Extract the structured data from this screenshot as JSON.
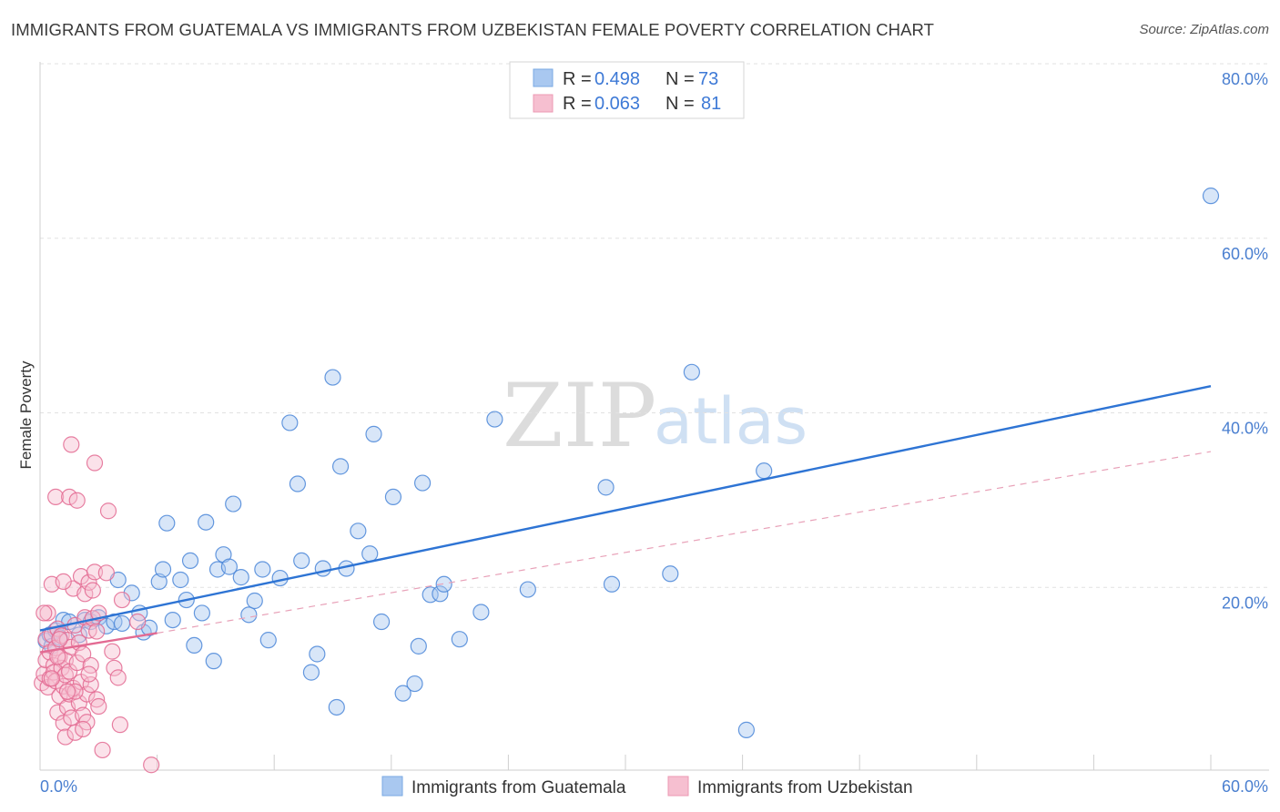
{
  "title": "IMMIGRANTS FROM GUATEMALA VS IMMIGRANTS FROM UZBEKISTAN FEMALE POVERTY CORRELATION CHART",
  "source": "Source: ZipAtlas.com",
  "watermark": {
    "zip": "ZIP",
    "atlas": "atlas"
  },
  "chart_data": {
    "type": "scatter",
    "title": "IMMIGRANTS FROM GUATEMALA VS IMMIGRANTS FROM UZBEKISTAN FEMALE POVERTY CORRELATION CHART",
    "xlabel": "",
    "ylabel": "Female Poverty",
    "xlim": [
      0,
      60
    ],
    "ylim": [
      0,
      85
    ],
    "x_tick_labels": {
      "left": "0.0%",
      "right": "60.0%"
    },
    "y_ticks": [
      {
        "value": 20,
        "label": "20.0%"
      },
      {
        "value": 40,
        "label": "40.0%"
      },
      {
        "value": 60,
        "label": "60.0%"
      },
      {
        "value": 80,
        "label": "80.0%"
      }
    ],
    "grid": true,
    "legend": {
      "r_label": "R =",
      "n_label": "N =",
      "entries": [
        {
          "r": "0.498",
          "n": "73"
        },
        {
          "r": "0.063",
          "n": "81"
        }
      ]
    },
    "series": [
      {
        "name": "Immigrants from Guatemala",
        "color": "#4a86d8",
        "fill": "#a9c8f0",
        "trend": {
          "x0": 0,
          "y0": 16.0,
          "x1": 60,
          "y1": 44.0,
          "style": "solid",
          "color": "#2e74d4"
        },
        "points": [
          [
            0.3,
            14.8
          ],
          [
            0.5,
            15.5
          ],
          [
            0.6,
            14.2
          ],
          [
            0.8,
            16.0
          ],
          [
            1.0,
            15.2
          ],
          [
            1.2,
            17.2
          ],
          [
            1.5,
            17.0
          ],
          [
            2.0,
            15.5
          ],
          [
            2.3,
            17.2
          ],
          [
            2.6,
            17.0
          ],
          [
            3.0,
            17.5
          ],
          [
            3.4,
            16.5
          ],
          [
            3.8,
            17.0
          ],
          [
            4.2,
            16.8
          ],
          [
            4.0,
            21.8
          ],
          [
            4.7,
            20.3
          ],
          [
            5.1,
            18.0
          ],
          [
            5.3,
            15.8
          ],
          [
            5.6,
            16.3
          ],
          [
            6.1,
            21.6
          ],
          [
            6.3,
            23.0
          ],
          [
            6.5,
            28.3
          ],
          [
            6.8,
            17.2
          ],
          [
            7.2,
            21.8
          ],
          [
            7.5,
            19.5
          ],
          [
            7.7,
            24.0
          ],
          [
            7.9,
            14.3
          ],
          [
            8.3,
            18.0
          ],
          [
            8.5,
            28.4
          ],
          [
            8.9,
            12.5
          ],
          [
            9.1,
            23.0
          ],
          [
            9.4,
            24.7
          ],
          [
            9.7,
            23.3
          ],
          [
            9.9,
            30.5
          ],
          [
            10.3,
            22.1
          ],
          [
            10.7,
            17.8
          ],
          [
            11.0,
            19.4
          ],
          [
            11.4,
            23.0
          ],
          [
            11.7,
            14.9
          ],
          [
            12.3,
            22.0
          ],
          [
            12.8,
            39.8
          ],
          [
            13.2,
            32.8
          ],
          [
            13.4,
            24.0
          ],
          [
            13.9,
            11.2
          ],
          [
            14.2,
            13.3
          ],
          [
            14.5,
            23.1
          ],
          [
            15.0,
            45.0
          ],
          [
            15.2,
            7.2
          ],
          [
            15.4,
            34.8
          ],
          [
            15.7,
            23.1
          ],
          [
            16.3,
            27.4
          ],
          [
            16.9,
            24.8
          ],
          [
            17.1,
            38.5
          ],
          [
            17.5,
            17.0
          ],
          [
            18.1,
            31.3
          ],
          [
            18.6,
            8.8
          ],
          [
            19.2,
            9.9
          ],
          [
            19.4,
            14.2
          ],
          [
            19.6,
            32.9
          ],
          [
            20.0,
            20.1
          ],
          [
            20.5,
            20.2
          ],
          [
            20.7,
            21.3
          ],
          [
            21.5,
            15.0
          ],
          [
            22.6,
            18.1
          ],
          [
            23.3,
            40.2
          ],
          [
            25.0,
            20.7
          ],
          [
            29.0,
            32.4
          ],
          [
            29.3,
            21.3
          ],
          [
            32.3,
            22.5
          ],
          [
            33.4,
            45.6
          ],
          [
            36.2,
            4.6
          ],
          [
            37.1,
            34.3
          ],
          [
            60.0,
            65.8
          ]
        ]
      },
      {
        "name": "Immigrants from Uzbekistan",
        "color": "#e36a92",
        "fill": "#f6bfd0",
        "trend": {
          "x0": 0,
          "y0": 13.5,
          "x1": 6,
          "y1": 15.7,
          "style": "solid",
          "color": "#e36a92"
        },
        "trend_extension": {
          "x0": 6,
          "y0": 15.7,
          "x1": 60,
          "y1": 36.5,
          "style": "dashed",
          "color": "#e8a1b8"
        },
        "points": [
          [
            0.1,
            10.0
          ],
          [
            0.2,
            11.0
          ],
          [
            0.3,
            12.6
          ],
          [
            0.3,
            15.0
          ],
          [
            0.4,
            18.0
          ],
          [
            0.4,
            9.5
          ],
          [
            0.5,
            13.5
          ],
          [
            0.5,
            10.5
          ],
          [
            0.6,
            21.3
          ],
          [
            0.6,
            15.5
          ],
          [
            0.7,
            12.0
          ],
          [
            0.7,
            11.2
          ],
          [
            0.8,
            31.3
          ],
          [
            0.8,
            14.0
          ],
          [
            0.8,
            10.2
          ],
          [
            0.9,
            16.2
          ],
          [
            0.9,
            6.6
          ],
          [
            1.0,
            13.0
          ],
          [
            1.0,
            8.5
          ],
          [
            1.1,
            15.4
          ],
          [
            1.1,
            11.7
          ],
          [
            1.2,
            9.6
          ],
          [
            1.2,
            5.4
          ],
          [
            1.3,
            12.6
          ],
          [
            1.3,
            10.9
          ],
          [
            1.3,
            3.8
          ],
          [
            1.4,
            14.9
          ],
          [
            1.4,
            7.2
          ],
          [
            1.5,
            11.3
          ],
          [
            1.5,
            8.7
          ],
          [
            1.5,
            31.3
          ],
          [
            1.6,
            37.3
          ],
          [
            1.6,
            14.1
          ],
          [
            1.6,
            6.0
          ],
          [
            1.7,
            20.8
          ],
          [
            1.7,
            9.4
          ],
          [
            1.8,
            16.6
          ],
          [
            1.8,
            4.3
          ],
          [
            1.9,
            30.9
          ],
          [
            1.9,
            12.3
          ],
          [
            2.0,
            7.7
          ],
          [
            2.0,
            14.6
          ],
          [
            2.1,
            22.2
          ],
          [
            2.1,
            10.1
          ],
          [
            2.2,
            13.3
          ],
          [
            2.2,
            6.3
          ],
          [
            2.3,
            20.2
          ],
          [
            2.3,
            17.5
          ],
          [
            2.4,
            8.7
          ],
          [
            2.4,
            5.5
          ],
          [
            2.5,
            21.5
          ],
          [
            2.5,
            16.0
          ],
          [
            2.6,
            12.0
          ],
          [
            2.6,
            9.8
          ],
          [
            2.7,
            20.6
          ],
          [
            2.7,
            17.4
          ],
          [
            2.8,
            22.7
          ],
          [
            2.8,
            35.2
          ],
          [
            2.9,
            8.1
          ],
          [
            2.9,
            15.9
          ],
          [
            3.0,
            7.3
          ],
          [
            3.0,
            18.0
          ],
          [
            3.2,
            2.3
          ],
          [
            3.4,
            22.6
          ],
          [
            3.5,
            29.7
          ],
          [
            3.7,
            13.6
          ],
          [
            3.8,
            11.7
          ],
          [
            4.0,
            10.6
          ],
          [
            4.1,
            5.2
          ],
          [
            4.2,
            19.5
          ],
          [
            5.0,
            17.0
          ],
          [
            5.7,
            0.6
          ],
          [
            0.2,
            18.0
          ],
          [
            0.6,
            10.5
          ],
          [
            1.2,
            21.6
          ],
          [
            2.2,
            4.7
          ],
          [
            1.0,
            15.0
          ],
          [
            1.8,
            9.0
          ],
          [
            2.5,
            11.0
          ],
          [
            0.9,
            13.0
          ],
          [
            1.4,
            9.0
          ]
        ]
      }
    ]
  },
  "bottom_legend": [
    "Immigrants from Guatemala",
    "Immigrants from Uzbekistan"
  ]
}
